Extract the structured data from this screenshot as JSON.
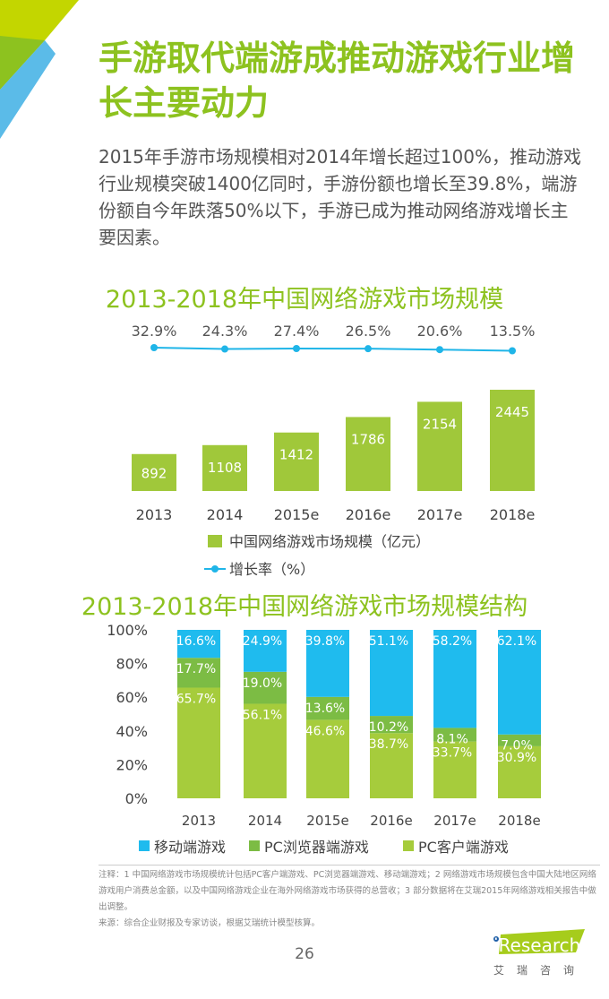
{
  "header": {
    "title": "手游取代端游成推动游戏行业增长主要动力",
    "summary": "2015年手游市场规模相对2014年增长超过100%，推动游戏行业规模突破1400亿同时，手游份额也增长至39.8%，端游份额自今年跌落50%以下，手游已成为推动网络游戏增长主要因素。"
  },
  "chart_data": [
    {
      "type": "bar",
      "title": "2013-2018年中国网络游戏市场规模",
      "categories": [
        "2013",
        "2014",
        "2015e",
        "2016e",
        "2017e",
        "2018e"
      ],
      "series": [
        {
          "name": "中国网络游戏市场规模（亿元）",
          "type": "bar",
          "values": [
            892,
            1108,
            1412,
            1786,
            2154,
            2445
          ],
          "color": "#a0c83a"
        },
        {
          "name": "增长率（%）",
          "type": "line",
          "values": [
            32.9,
            24.3,
            27.4,
            26.5,
            20.6,
            13.5
          ],
          "labels": [
            "32.9%",
            "24.3%",
            "27.4%",
            "26.5%",
            "20.6%",
            "13.5%"
          ],
          "color": "#1fb5e8"
        }
      ],
      "legend": "bottom"
    },
    {
      "type": "bar",
      "stacked": true,
      "title": "2013-2018年中国网络游戏市场规模结构",
      "categories": [
        "2013",
        "2014",
        "2015e",
        "2016e",
        "2017e",
        "2018e"
      ],
      "yticks": [
        "0%",
        "20%",
        "40%",
        "60%",
        "80%",
        "100%"
      ],
      "ylim": [
        0,
        100
      ],
      "series": [
        {
          "name": "PC客户端游戏",
          "values": [
            65.7,
            56.1,
            46.6,
            38.7,
            33.7,
            30.9
          ],
          "color": "#a6cc3c"
        },
        {
          "name": "PC浏览器端游戏",
          "values": [
            17.7,
            19.0,
            13.6,
            10.2,
            8.1,
            7.0
          ],
          "color": "#7cbc44"
        },
        {
          "name": "移动端游戏",
          "values": [
            16.6,
            24.9,
            39.8,
            51.1,
            58.2,
            62.1
          ],
          "color": "#1fbbee"
        }
      ],
      "legend_order": [
        "移动端游戏",
        "PC浏览器端游戏",
        "PC客户端游戏"
      ],
      "legend": "bottom"
    }
  ],
  "footer": {
    "notes": "注释：1 中国网络游戏市场规模统计包括PC客户端游戏、PC浏览器端游戏、移动端游戏；2 网络游戏市场规模包含中国大陆地区网络游戏用户消费总金额，以及中国网络游戏企业在海外网络游戏市场获得的总营收；3 部分数据将在艾瑞2015年网络游戏相关报告中做出调整。",
    "source": "来源：综合企业财报及专家访谈，根据艾瑞统计模型核算。",
    "page": "26",
    "logo": "iResearch 艾瑞咨询"
  }
}
